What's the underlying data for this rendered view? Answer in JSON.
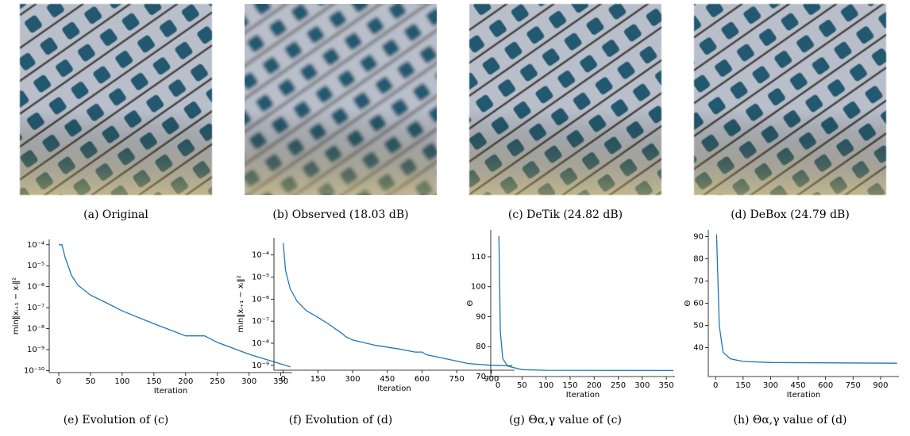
{
  "images": [
    {
      "caption": "(a) Original"
    },
    {
      "caption": "(b) Observed (18.03 dB)"
    },
    {
      "caption": "(c) DeTik (24.82 dB)"
    },
    {
      "caption": "(d) DeBox (24.79 dB)"
    }
  ],
  "chart_data": [
    {
      "type": "line",
      "caption": "(e) Evolution of (c)",
      "xlabel": "Iteration",
      "ylabel": "min‖xᵢ₊₁ − xᵢ‖²",
      "log_y": true,
      "x": [
        0,
        5,
        10,
        20,
        30,
        50,
        75,
        100,
        150,
        200,
        230,
        250,
        300,
        365
      ],
      "series": [
        {
          "color": "#1f77b4",
          "values": [
            0.0001,
            0.0001,
            2.5e-05,
            3.5e-06,
            1.2e-06,
            4e-07,
            1.7e-07,
            7e-08,
            1.7e-08,
            4.5e-09,
            4.5e-09,
            2.2e-09,
            6e-10,
            1.5e-10
          ]
        }
      ],
      "xlim": [
        -15,
        368
      ],
      "ylim": [
        8e-11,
        0.00018
      ],
      "xticks": [
        0,
        50,
        100,
        150,
        200,
        250,
        300,
        350
      ],
      "yticks": [
        {
          "value": 1e-10,
          "label": "10⁻¹⁰"
        },
        {
          "value": 1e-09,
          "label": "10⁻⁹"
        },
        {
          "value": 1e-08,
          "label": "10⁻⁸"
        },
        {
          "value": 1e-07,
          "label": "10⁻⁷"
        },
        {
          "value": 1e-06,
          "label": "10⁻⁶"
        },
        {
          "value": 1e-05,
          "label": "10⁻⁵"
        },
        {
          "value": 0.0001,
          "label": "10⁻⁴"
        }
      ]
    },
    {
      "type": "line",
      "caption": "(f) Evolution of (d)",
      "xlabel": "Iteration",
      "ylabel": "min‖xᵢ₊₁ − xᵢ‖²",
      "log_y": true,
      "x": [
        0,
        10,
        30,
        60,
        100,
        150,
        200,
        240,
        250,
        270,
        300,
        400,
        500,
        570,
        600,
        620,
        700,
        800,
        900,
        990
      ],
      "series": [
        {
          "color": "#1f77b4",
          "values": [
            0.00035,
            2e-05,
            3e-06,
            8e-07,
            3e-07,
            1.5e-07,
            7e-08,
            3.5e-08,
            3e-08,
            2e-08,
            1.4e-08,
            8e-09,
            5.5e-09,
            4e-09,
            4e-09,
            3e-09,
            2e-09,
            1.2e-09,
            1e-09,
            9.5e-10
          ]
        }
      ],
      "xlim": [
        -40,
        1000
      ],
      "ylim": [
        6e-10,
        0.0006
      ],
      "xticks": [
        0,
        150,
        300,
        450,
        600,
        750,
        900
      ],
      "yticks": [
        {
          "value": 1e-09,
          "label": "10⁻⁹"
        },
        {
          "value": 1e-08,
          "label": "10⁻⁸"
        },
        {
          "value": 1e-07,
          "label": "10⁻⁷"
        },
        {
          "value": 1e-06,
          "label": "10⁻⁶"
        },
        {
          "value": 1e-05,
          "label": "10⁻⁵"
        },
        {
          "value": 0.0001,
          "label": "10⁻⁴"
        }
      ]
    },
    {
      "type": "line",
      "caption": "(g) Θα,γ value of (c)",
      "xlabel": "Iteration",
      "ylabel": "Θ",
      "log_y": false,
      "x": [
        2,
        5,
        10,
        20,
        50,
        100,
        365
      ],
      "series": [
        {
          "color": "#1f77b4",
          "values": [
            117,
            85,
            76,
            73.5,
            72.3,
            72.1,
            72
          ]
        }
      ],
      "xlim": [
        -15,
        368
      ],
      "ylim": [
        70,
        119
      ],
      "xticks": [
        0,
        50,
        100,
        150,
        200,
        250,
        300,
        350
      ],
      "yticks": [
        70,
        80,
        90,
        100,
        110
      ]
    },
    {
      "type": "line",
      "caption": "(h) Θα,γ value of (d)",
      "xlabel": "Iteration",
      "ylabel": "Θ",
      "log_y": false,
      "x": [
        5,
        20,
        40,
        80,
        150,
        300,
        990
      ],
      "series": [
        {
          "color": "#1f77b4",
          "values": [
            91,
            50,
            38,
            35,
            33.8,
            33.3,
            33
          ]
        }
      ],
      "xlim": [
        -40,
        1000
      ],
      "ylim": [
        27,
        93
      ],
      "xticks": [
        0,
        150,
        300,
        450,
        600,
        750,
        900
      ],
      "yticks": [
        40,
        50,
        60,
        70,
        80,
        90
      ]
    }
  ]
}
